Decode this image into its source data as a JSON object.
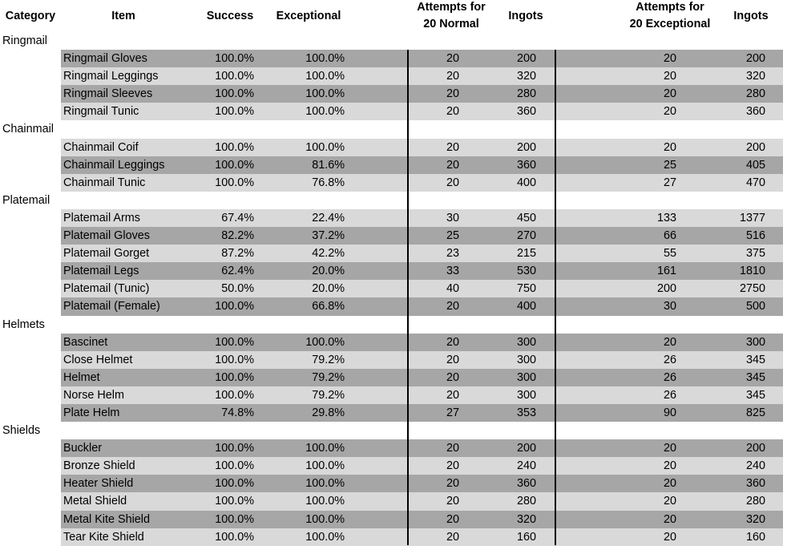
{
  "headers": {
    "category": "Category",
    "item": "Item",
    "success": "Success",
    "exceptional": "Exceptional",
    "attempts_normal_1": "Attempts for",
    "attempts_normal_2": "20 Normal",
    "ingots_normal": "Ingots",
    "attempts_exc_1": "Attempts for",
    "attempts_exc_2": "20 Exceptional",
    "ingots_exc": "Ingots"
  },
  "rows": [
    {
      "type": "category",
      "label": "Ringmail"
    },
    {
      "type": "item",
      "shade": "dark",
      "item": "Ringmail Gloves",
      "success": "100.0%",
      "exceptional": "100.0%",
      "attempts_normal": "20",
      "ingots_normal": "200",
      "attempts_exc": "20",
      "ingots_exc": "200"
    },
    {
      "type": "item",
      "shade": "light",
      "item": "Ringmail Leggings",
      "success": "100.0%",
      "exceptional": "100.0%",
      "attempts_normal": "20",
      "ingots_normal": "320",
      "attempts_exc": "20",
      "ingots_exc": "320"
    },
    {
      "type": "item",
      "shade": "dark",
      "item": "Ringmail Sleeves",
      "success": "100.0%",
      "exceptional": "100.0%",
      "attempts_normal": "20",
      "ingots_normal": "280",
      "attempts_exc": "20",
      "ingots_exc": "280"
    },
    {
      "type": "item",
      "shade": "light",
      "item": "Ringmail Tunic",
      "success": "100.0%",
      "exceptional": "100.0%",
      "attempts_normal": "20",
      "ingots_normal": "360",
      "attempts_exc": "20",
      "ingots_exc": "360"
    },
    {
      "type": "category",
      "label": "Chainmail"
    },
    {
      "type": "item",
      "shade": "light",
      "item": "Chainmail Coif",
      "success": "100.0%",
      "exceptional": "100.0%",
      "attempts_normal": "20",
      "ingots_normal": "200",
      "attempts_exc": "20",
      "ingots_exc": "200"
    },
    {
      "type": "item",
      "shade": "dark",
      "item": "Chainmail Leggings",
      "success": "100.0%",
      "exceptional": "81.6%",
      "attempts_normal": "20",
      "ingots_normal": "360",
      "attempts_exc": "25",
      "ingots_exc": "405"
    },
    {
      "type": "item",
      "shade": "light",
      "item": "Chainmail Tunic",
      "success": "100.0%",
      "exceptional": "76.8%",
      "attempts_normal": "20",
      "ingots_normal": "400",
      "attempts_exc": "27",
      "ingots_exc": "470"
    },
    {
      "type": "category",
      "label": "Platemail"
    },
    {
      "type": "item",
      "shade": "light",
      "item": "Platemail Arms",
      "success": "67.4%",
      "exceptional": "22.4%",
      "attempts_normal": "30",
      "ingots_normal": "450",
      "attempts_exc": "133",
      "ingots_exc": "1377"
    },
    {
      "type": "item",
      "shade": "dark",
      "item": "Platemail Gloves",
      "success": "82.2%",
      "exceptional": "37.2%",
      "attempts_normal": "25",
      "ingots_normal": "270",
      "attempts_exc": "66",
      "ingots_exc": "516"
    },
    {
      "type": "item",
      "shade": "light",
      "item": "Platemail Gorget",
      "success": "87.2%",
      "exceptional": "42.2%",
      "attempts_normal": "23",
      "ingots_normal": "215",
      "attempts_exc": "55",
      "ingots_exc": "375"
    },
    {
      "type": "item",
      "shade": "dark",
      "item": "Platemail Legs",
      "success": "62.4%",
      "exceptional": "20.0%",
      "attempts_normal": "33",
      "ingots_normal": "530",
      "attempts_exc": "161",
      "ingots_exc": "1810"
    },
    {
      "type": "item",
      "shade": "light",
      "item": "Platemail (Tunic)",
      "success": "50.0%",
      "exceptional": "20.0%",
      "attempts_normal": "40",
      "ingots_normal": "750",
      "attempts_exc": "200",
      "ingots_exc": "2750"
    },
    {
      "type": "item",
      "shade": "dark",
      "item": "Platemail (Female)",
      "success": "100.0%",
      "exceptional": "66.8%",
      "attempts_normal": "20",
      "ingots_normal": "400",
      "attempts_exc": "30",
      "ingots_exc": "500"
    },
    {
      "type": "category",
      "label": "Helmets"
    },
    {
      "type": "item",
      "shade": "dark",
      "item": "Bascinet",
      "success": "100.0%",
      "exceptional": "100.0%",
      "attempts_normal": "20",
      "ingots_normal": "300",
      "attempts_exc": "20",
      "ingots_exc": "300"
    },
    {
      "type": "item",
      "shade": "light",
      "item": "Close Helmet",
      "success": "100.0%",
      "exceptional": "79.2%",
      "attempts_normal": "20",
      "ingots_normal": "300",
      "attempts_exc": "26",
      "ingots_exc": "345"
    },
    {
      "type": "item",
      "shade": "dark",
      "item": "Helmet",
      "success": "100.0%",
      "exceptional": "79.2%",
      "attempts_normal": "20",
      "ingots_normal": "300",
      "attempts_exc": "26",
      "ingots_exc": "345"
    },
    {
      "type": "item",
      "shade": "light",
      "item": "Norse Helm",
      "success": "100.0%",
      "exceptional": "79.2%",
      "attempts_normal": "20",
      "ingots_normal": "300",
      "attempts_exc": "26",
      "ingots_exc": "345"
    },
    {
      "type": "item",
      "shade": "dark",
      "item": "Plate Helm",
      "success": "74.8%",
      "exceptional": "29.8%",
      "attempts_normal": "27",
      "ingots_normal": "353",
      "attempts_exc": "90",
      "ingots_exc": "825"
    },
    {
      "type": "category",
      "label": "Shields"
    },
    {
      "type": "item",
      "shade": "dark",
      "item": "Buckler",
      "success": "100.0%",
      "exceptional": "100.0%",
      "attempts_normal": "20",
      "ingots_normal": "200",
      "attempts_exc": "20",
      "ingots_exc": "200"
    },
    {
      "type": "item",
      "shade": "light",
      "item": "Bronze Shield",
      "success": "100.0%",
      "exceptional": "100.0%",
      "attempts_normal": "20",
      "ingots_normal": "240",
      "attempts_exc": "20",
      "ingots_exc": "240"
    },
    {
      "type": "item",
      "shade": "dark",
      "item": "Heater Shield",
      "success": "100.0%",
      "exceptional": "100.0%",
      "attempts_normal": "20",
      "ingots_normal": "360",
      "attempts_exc": "20",
      "ingots_exc": "360"
    },
    {
      "type": "item",
      "shade": "light",
      "item": "Metal Shield",
      "success": "100.0%",
      "exceptional": "100.0%",
      "attempts_normal": "20",
      "ingots_normal": "280",
      "attempts_exc": "20",
      "ingots_exc": "280"
    },
    {
      "type": "item",
      "shade": "dark",
      "item": "Metal Kite Shield",
      "success": "100.0%",
      "exceptional": "100.0%",
      "attempts_normal": "20",
      "ingots_normal": "320",
      "attempts_exc": "20",
      "ingots_exc": "320"
    },
    {
      "type": "item",
      "shade": "light",
      "item": "Tear Kite Shield",
      "success": "100.0%",
      "exceptional": "100.0%",
      "attempts_normal": "20",
      "ingots_normal": "160",
      "attempts_exc": "20",
      "ingots_exc": "160"
    }
  ],
  "colors": {
    "shade_dark": "#a6a6a6",
    "shade_light": "#d9d9d9",
    "background": "#ffffff"
  }
}
